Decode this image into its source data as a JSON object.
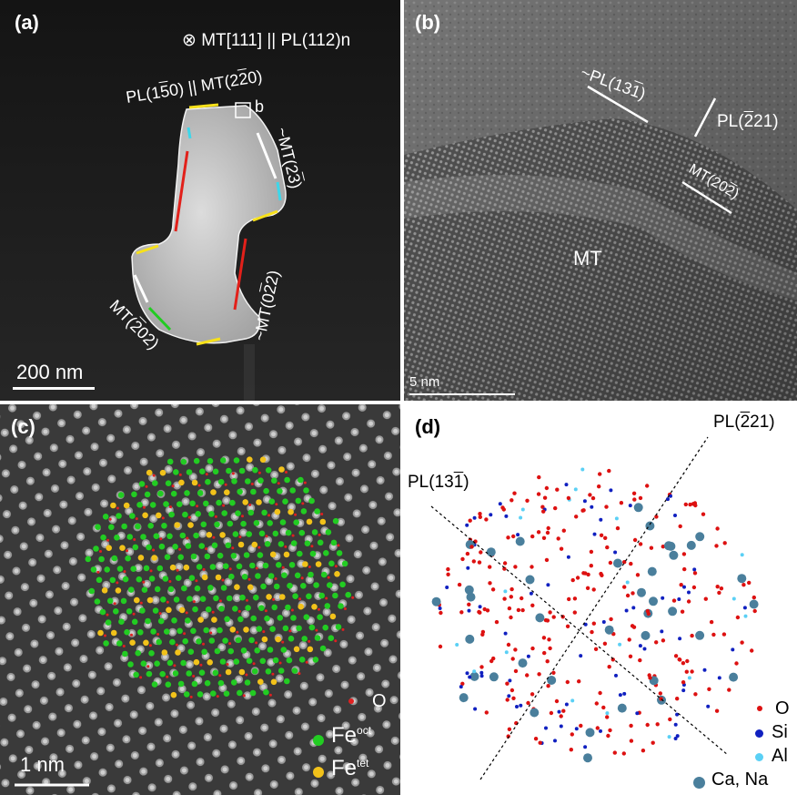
{
  "panels": {
    "a": {
      "label": "(a)",
      "zone_axis": "⊗ MT[111] || PL(112)n",
      "facet_top": [
        "PL(1",
        "5",
        "0) || MT(2",
        "2",
        "0)"
      ],
      "box_label": "b",
      "facet_right": [
        "~MT(2",
        "1",
        "3",
        ")"
      ],
      "facet_mid": [
        "~MT(0",
        "2",
        "2",
        ")"
      ],
      "facet_left": [
        "MT(",
        "2",
        "02)"
      ],
      "scale": "200 nm"
    },
    "b": {
      "label": "(b)",
      "plane_1": [
        "~PL(13",
        "1",
        ")"
      ],
      "plane_2": [
        "PL(",
        "2",
        "21)"
      ],
      "plane_3": [
        "MT(20",
        "2",
        ")"
      ],
      "phase": "MT",
      "scale": "5 nm"
    },
    "c": {
      "label": "(c)",
      "scale": "1 nm",
      "legend": [
        {
          "name": "O",
          "sup": "",
          "color": "#e02020"
        },
        {
          "name": "Fe",
          "sup": "oct",
          "color": "#22cc22"
        },
        {
          "name": "Fe",
          "sup": "tet",
          "color": "#f2c21a"
        }
      ]
    },
    "d": {
      "label": "(d)",
      "plane_1": [
        "PL(13",
        "1",
        ")"
      ],
      "plane_2": [
        "PL(",
        "2",
        "21)"
      ],
      "legend": [
        {
          "name": "O",
          "color": "#dd1111"
        },
        {
          "name": "Si",
          "color": "#1020c0"
        },
        {
          "name": "Al",
          "color": "#5ad0f5"
        },
        {
          "name": "Ca, Na",
          "color": "#4a7f9c"
        }
      ]
    }
  }
}
